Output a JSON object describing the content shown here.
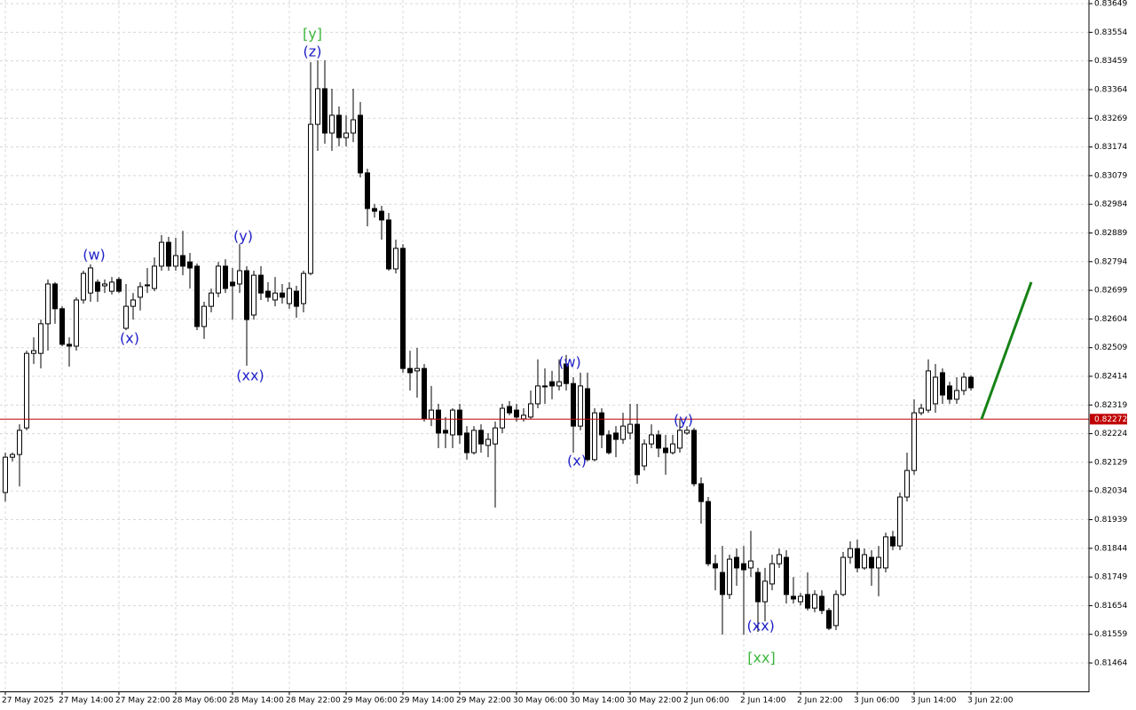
{
  "chart_data": {
    "type": "candlestick",
    "bull_color": "#ffffff",
    "bear_color": "#000000",
    "grid": true,
    "ylim": [
      0.8137,
      0.83661
    ],
    "yticks": [
      0.83649,
      0.83554,
      0.83459,
      0.83364,
      0.83269,
      0.83174,
      0.83079,
      0.82984,
      0.82889,
      0.82794,
      0.82699,
      0.82604,
      0.82509,
      0.82414,
      0.82319,
      0.82224,
      0.82129,
      0.82034,
      0.81939,
      0.81844,
      0.81749,
      0.81654,
      0.81559,
      0.81464
    ],
    "categories": [
      "27 May 2025",
      null,
      null,
      null,
      null,
      null,
      null,
      null,
      "27 May 14:00",
      null,
      null,
      null,
      null,
      null,
      null,
      null,
      "27 May 22:00",
      null,
      null,
      null,
      null,
      null,
      null,
      null,
      "28 May 06:00",
      null,
      null,
      null,
      null,
      null,
      null,
      null,
      "28 May 14:00",
      null,
      null,
      null,
      null,
      null,
      null,
      null,
      "28 May 22:00",
      null,
      null,
      null,
      null,
      null,
      null,
      null,
      "29 May 06:00",
      null,
      null,
      null,
      null,
      null,
      null,
      null,
      "29 May 14:00",
      null,
      null,
      null,
      null,
      null,
      null,
      null,
      "29 May 22:00",
      null,
      null,
      null,
      null,
      null,
      null,
      null,
      "30 May 06:00",
      null,
      null,
      null,
      null,
      null,
      null,
      null,
      "30 May 14:00",
      null,
      null,
      null,
      null,
      null,
      null,
      null,
      "30 May 22:00",
      null,
      null,
      null,
      null,
      null,
      null,
      null,
      "2 Jun 06:00",
      null,
      null,
      null,
      null,
      null,
      null,
      null,
      "2 Jun 14:00",
      null,
      null,
      null,
      null,
      null,
      null,
      null,
      "2 Jun 22:00",
      null,
      null,
      null,
      null,
      null,
      null,
      null,
      "3 Jun 06:00",
      null,
      null,
      null,
      null,
      null,
      null,
      null,
      "3 Jun 14:00",
      null,
      null,
      null,
      null,
      null,
      null,
      null,
      "3 Jun 22:00"
    ],
    "ohlc": [
      [
        0.82029,
        0.82161,
        0.81999,
        0.82146
      ],
      [
        0.82146,
        0.82161,
        0.82132,
        0.82155
      ],
      [
        0.82155,
        0.82255,
        0.82049,
        0.82235
      ],
      [
        0.82243,
        0.82499,
        0.82235,
        0.8249
      ],
      [
        0.8249,
        0.82543,
        0.82455,
        0.82499
      ],
      [
        0.8249,
        0.82602,
        0.8244,
        0.82588
      ],
      [
        0.82588,
        0.82735,
        0.82499,
        0.8272
      ],
      [
        0.8272,
        0.82726,
        0.82588,
        0.82638
      ],
      [
        0.82638,
        0.82646,
        0.82514,
        0.8252
      ],
      [
        0.8252,
        0.82543,
        0.82446,
        0.82514
      ],
      [
        0.82514,
        0.82676,
        0.82499,
        0.82667
      ],
      [
        0.82667,
        0.82764,
        0.82655,
        0.82755
      ],
      [
        0.8269,
        0.82785,
        0.82661,
        0.82773
      ],
      [
        0.82726,
        0.82735,
        0.82661,
        0.82696
      ],
      [
        0.82714,
        0.82735,
        0.8269,
        0.8272
      ],
      [
        0.82696,
        0.82743,
        0.82685,
        0.82726
      ],
      [
        0.82735,
        0.82743,
        0.8269,
        0.82696
      ],
      [
        0.82573,
        0.8272,
        0.82567,
        0.82646
      ],
      [
        0.82646,
        0.8269,
        0.82602,
        0.82667
      ],
      [
        0.82676,
        0.82726,
        0.82632,
        0.82711
      ],
      [
        0.82714,
        0.82773,
        0.8269,
        0.82717
      ],
      [
        0.82705,
        0.82808,
        0.82696,
        0.82779
      ],
      [
        0.82779,
        0.82882,
        0.82764,
        0.82858
      ],
      [
        0.82858,
        0.82876,
        0.82764,
        0.82779
      ],
      [
        0.82779,
        0.82873,
        0.82764,
        0.82814
      ],
      [
        0.82814,
        0.82896,
        0.82749,
        0.82779
      ],
      [
        0.82793,
        0.82823,
        0.82705,
        0.82773
      ],
      [
        0.82779,
        0.82788,
        0.82567,
        0.82579
      ],
      [
        0.82579,
        0.82661,
        0.82538,
        0.82646
      ],
      [
        0.82646,
        0.82705,
        0.82626,
        0.8269
      ],
      [
        0.8269,
        0.82793,
        0.82676,
        0.82779
      ],
      [
        0.82779,
        0.82802,
        0.8269,
        0.82705
      ],
      [
        0.82726,
        0.82773,
        0.82602,
        0.82714
      ],
      [
        0.8272,
        0.82852,
        0.8269,
        0.82764
      ],
      [
        0.82764,
        0.82779,
        0.82449,
        0.82602
      ],
      [
        0.82617,
        0.82764,
        0.82602,
        0.82749
      ],
      [
        0.82749,
        0.82779,
        0.82667,
        0.8269
      ],
      [
        0.82696,
        0.82726,
        0.82661,
        0.82676
      ],
      [
        0.82667,
        0.82743,
        0.82646,
        0.8269
      ],
      [
        0.8269,
        0.8272,
        0.82655,
        0.82676
      ],
      [
        0.82655,
        0.82726,
        0.82638,
        0.82705
      ],
      [
        0.82696,
        0.82714,
        0.82608,
        0.82646
      ],
      [
        0.82655,
        0.82764,
        0.82626,
        0.82755
      ],
      [
        0.82755,
        0.83455,
        0.82749,
        0.83249
      ],
      [
        0.83249,
        0.83461,
        0.83161,
        0.83367
      ],
      [
        0.83367,
        0.83461,
        0.83185,
        0.8322
      ],
      [
        0.8322,
        0.83367,
        0.83161,
        0.83279
      ],
      [
        0.83279,
        0.83308,
        0.83176,
        0.83205
      ],
      [
        0.83205,
        0.83279,
        0.83176,
        0.8322
      ],
      [
        0.8322,
        0.83367,
        0.8319,
        0.83264
      ],
      [
        0.83279,
        0.83323,
        0.83073,
        0.83088
      ],
      [
        0.83088,
        0.83102,
        0.82911,
        0.8297
      ],
      [
        0.8297,
        0.82985,
        0.8294,
        0.82961
      ],
      [
        0.82961,
        0.82979,
        0.82867,
        0.82932
      ],
      [
        0.82932,
        0.82955,
        0.82764,
        0.8277
      ],
      [
        0.8277,
        0.82867,
        0.82755,
        0.82838
      ],
      [
        0.82838,
        0.82852,
        0.82426,
        0.8244
      ],
      [
        0.8244,
        0.82499,
        0.82367,
        0.82426
      ],
      [
        0.82432,
        0.82508,
        0.82343,
        0.8244
      ],
      [
        0.8244,
        0.82455,
        0.82264,
        0.82273
      ],
      [
        0.82273,
        0.82382,
        0.82249,
        0.82302
      ],
      [
        0.82302,
        0.82323,
        0.82176,
        0.82226
      ],
      [
        0.82235,
        0.82279,
        0.82176,
        0.82226
      ],
      [
        0.8222,
        0.82308,
        0.82176,
        0.82302
      ],
      [
        0.82302,
        0.82323,
        0.8219,
        0.8222
      ],
      [
        0.82226,
        0.82249,
        0.82138,
        0.82161
      ],
      [
        0.82161,
        0.82249,
        0.82155,
        0.82235
      ],
      [
        0.82235,
        0.82255,
        0.82161,
        0.8219
      ],
      [
        0.82185,
        0.82226,
        0.82146,
        0.82205
      ],
      [
        0.8219,
        0.82264,
        0.81979,
        0.82243
      ],
      [
        0.82243,
        0.82323,
        0.82226,
        0.82308
      ],
      [
        0.82314,
        0.82332,
        0.82285,
        0.82293
      ],
      [
        0.82302,
        0.82323,
        0.82264,
        0.82279
      ],
      [
        0.82273,
        0.82308,
        0.82264,
        0.82285
      ],
      [
        0.82279,
        0.82367,
        0.82273,
        0.82323
      ],
      [
        0.82323,
        0.8247,
        0.82308,
        0.82382
      ],
      [
        0.82382,
        0.8244,
        0.82323,
        0.82379
      ],
      [
        0.82396,
        0.82432,
        0.82338,
        0.82382
      ],
      [
        0.82382,
        0.8247,
        0.82367,
        0.82396
      ],
      [
        0.82455,
        0.82485,
        0.82367,
        0.8239
      ],
      [
        0.8239,
        0.82411,
        0.82161,
        0.82249
      ],
      [
        0.82249,
        0.82426,
        0.82235,
        0.82382
      ],
      [
        0.82373,
        0.82426,
        0.82132,
        0.82138
      ],
      [
        0.82138,
        0.82308,
        0.82132,
        0.82293
      ],
      [
        0.82293,
        0.82308,
        0.82176,
        0.8222
      ],
      [
        0.8222,
        0.82235,
        0.82155,
        0.82161
      ],
      [
        0.82226,
        0.82249,
        0.82146,
        0.82205
      ],
      [
        0.82205,
        0.82293,
        0.8219,
        0.82249
      ],
      [
        0.82226,
        0.82323,
        0.82205,
        0.82255
      ],
      [
        0.82255,
        0.82323,
        0.82058,
        0.82088
      ],
      [
        0.82117,
        0.82205,
        0.82102,
        0.8219
      ],
      [
        0.8219,
        0.82255,
        0.82176,
        0.8222
      ],
      [
        0.8222,
        0.82235,
        0.82146,
        0.82176
      ],
      [
        0.82176,
        0.8222,
        0.82088,
        0.82161
      ],
      [
        0.82161,
        0.8222,
        0.82155,
        0.8219
      ],
      [
        0.82176,
        0.82273,
        0.82161,
        0.82235
      ],
      [
        0.82226,
        0.82249,
        0.8222,
        0.82235
      ],
      [
        0.82235,
        0.82243,
        0.82049,
        0.82058
      ],
      [
        0.82058,
        0.82079,
        0.81926,
        0.81999
      ],
      [
        0.81999,
        0.82014,
        0.81785,
        0.81793
      ],
      [
        0.81793,
        0.81823,
        0.81705,
        0.81779
      ],
      [
        0.81764,
        0.81852,
        0.81558,
        0.81691
      ],
      [
        0.81691,
        0.81823,
        0.81676,
        0.81808
      ],
      [
        0.81814,
        0.81843,
        0.8172,
        0.81779
      ],
      [
        0.81793,
        0.81852,
        0.81558,
        0.81773
      ],
      [
        0.81779,
        0.81902,
        0.81749,
        0.81802
      ],
      [
        0.81764,
        0.81779,
        0.81567,
        0.81667
      ],
      [
        0.81667,
        0.81779,
        0.81602,
        0.81735
      ],
      [
        0.81726,
        0.81823,
        0.81705,
        0.81793
      ],
      [
        0.81793,
        0.81843,
        0.81779,
        0.81823
      ],
      [
        0.81814,
        0.81838,
        0.81661,
        0.81691
      ],
      [
        0.81685,
        0.81749,
        0.81661,
        0.81676
      ],
      [
        0.81667,
        0.81696,
        0.81655,
        0.81685
      ],
      [
        0.81691,
        0.81764,
        0.81638,
        0.81646
      ],
      [
        0.81646,
        0.81705,
        0.81632,
        0.81691
      ],
      [
        0.81685,
        0.81705,
        0.81626,
        0.81638
      ],
      [
        0.81638,
        0.81646,
        0.81573,
        0.81579
      ],
      [
        0.81588,
        0.81705,
        0.81573,
        0.81691
      ],
      [
        0.81691,
        0.81832,
        0.81685,
        0.81814
      ],
      [
        0.81814,
        0.81867,
        0.81793,
        0.81843
      ],
      [
        0.81843,
        0.81873,
        0.81764,
        0.81779
      ],
      [
        0.81779,
        0.81843,
        0.81773,
        0.81823
      ],
      [
        0.81814,
        0.81838,
        0.8172,
        0.81779
      ],
      [
        0.81779,
        0.81852,
        0.81685,
        0.81814
      ],
      [
        0.81779,
        0.81896,
        0.81764,
        0.81882
      ],
      [
        0.81882,
        0.81902,
        0.81838,
        0.81852
      ],
      [
        0.81852,
        0.82029,
        0.81838,
        0.82014
      ],
      [
        0.82014,
        0.82161,
        0.81999,
        0.82102
      ],
      [
        0.82102,
        0.82338,
        0.82088,
        0.82293
      ],
      [
        0.82293,
        0.82323,
        0.82285,
        0.82308
      ],
      [
        0.82302,
        0.8247,
        0.82293,
        0.82432
      ],
      [
        0.82323,
        0.82455,
        0.82293,
        0.82411
      ],
      [
        0.82426,
        0.8244,
        0.82323,
        0.82352
      ],
      [
        0.82382,
        0.82396,
        0.82323,
        0.82338
      ],
      [
        0.82338,
        0.82411,
        0.82323,
        0.82367
      ],
      [
        0.82367,
        0.82426,
        0.82352,
        0.82411
      ],
      [
        0.82411,
        0.82417,
        0.82367,
        0.82376
      ]
    ],
    "price_line": {
      "value": 0.82272,
      "color": "#c00000"
    },
    "forecast": {
      "color": "#168216",
      "x": [
        137.5,
        144.5
      ],
      "values": [
        0.82272,
        0.82726
      ]
    },
    "annotations": [
      {
        "text": "[y]",
        "x": 43.25,
        "y": 0.83546,
        "color": "#3cb83c"
      },
      {
        "text": "(z)",
        "x": 43.25,
        "y": 0.83487,
        "color": "#2020c8"
      },
      {
        "text": "(w)",
        "x": 12.5,
        "y": 0.82814,
        "color": "#2020c8"
      },
      {
        "text": "(x)",
        "x": 17.5,
        "y": 0.82537,
        "color": "#2020c8"
      },
      {
        "text": "(y)",
        "x": 33.5,
        "y": 0.82876,
        "color": "#2020c8"
      },
      {
        "text": "(xx)",
        "x": 34.5,
        "y": 0.82414,
        "color": "#2020c8"
      },
      {
        "text": "(w)",
        "x": 79.5,
        "y": 0.82458,
        "color": "#2020c8"
      },
      {
        "text": "(x)",
        "x": 80.5,
        "y": 0.82132,
        "color": "#2020c8"
      },
      {
        "text": "(y)",
        "x": 95.5,
        "y": 0.82267,
        "color": "#2020c8"
      },
      {
        "text": "(xx)",
        "x": 106.4,
        "y": 0.81585,
        "color": "#2020c8"
      },
      {
        "text": "[xx]",
        "x": 106.5,
        "y": 0.81479,
        "color": "#3cb83c"
      }
    ]
  }
}
